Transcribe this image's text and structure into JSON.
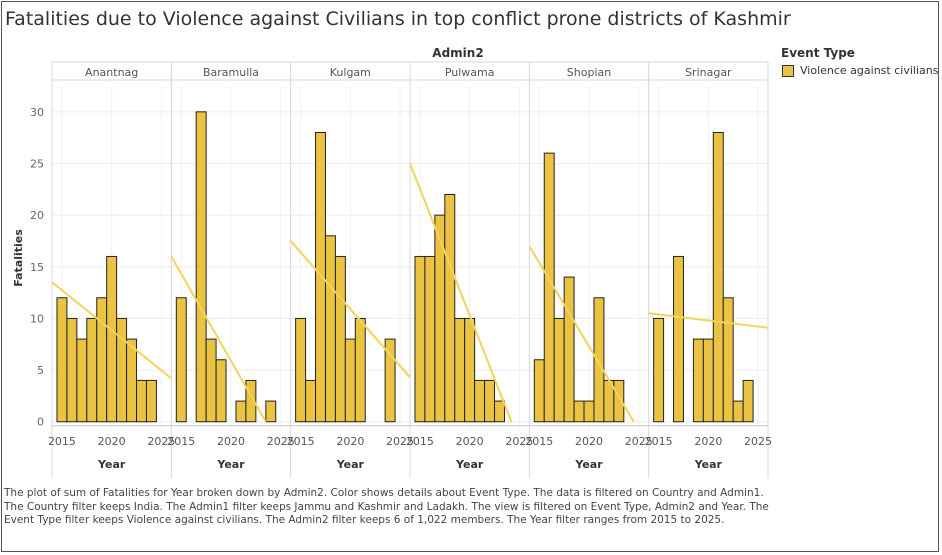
{
  "page": {
    "title": "Fatalities due to Violence against Civilians in top conflict prone districts of Kashmir",
    "caption": "The plot of sum of Fatalities for Year broken down by Admin2.  Color shows details about Event Type. The data is filtered on Country and Admin1. The Country filter keeps India. The Admin1 filter keeps Jammu and Kashmir and Ladakh. The view is filtered on Event Type, Admin2 and Year. The Event Type filter keeps Violence against civilians. The Admin2 filter keeps 6 of 1,022 members. The Year filter ranges from 2015 to 2025."
  },
  "legend": {
    "title": "Event Type",
    "items": [
      {
        "label": "Violence against civilians",
        "color": "#eac343"
      }
    ]
  },
  "chart_data": {
    "type": "bar",
    "facet_title": "Admin2",
    "xlabel": "Year",
    "ylabel": "Fatalities",
    "x_ticks": [
      2015,
      2020,
      2025
    ],
    "xlim": [
      2014,
      2026
    ],
    "y_ticks": [
      0,
      5,
      10,
      15,
      20,
      25,
      30
    ],
    "ylim": [
      -0.8,
      32.5
    ],
    "bar_color": "#eac343",
    "trend_color": "#f2d45c",
    "panels": [
      {
        "name": "Anantnag",
        "bars": [
          {
            "year": 2015,
            "value": 12
          },
          {
            "year": 2016,
            "value": 10
          },
          {
            "year": 2017,
            "value": 8
          },
          {
            "year": 2018,
            "value": 10
          },
          {
            "year": 2019,
            "value": 12
          },
          {
            "year": 2020,
            "value": 16
          },
          {
            "year": 2021,
            "value": 10
          },
          {
            "year": 2022,
            "value": 8
          },
          {
            "year": 2023,
            "value": 4
          },
          {
            "year": 2024,
            "value": 4
          }
        ],
        "trend": [
          [
            2014,
            13.5
          ],
          [
            2026,
            4.2
          ]
        ]
      },
      {
        "name": "Baramulla",
        "bars": [
          {
            "year": 2015,
            "value": 12
          },
          {
            "year": 2017,
            "value": 30
          },
          {
            "year": 2018,
            "value": 8
          },
          {
            "year": 2019,
            "value": 6
          },
          {
            "year": 2021,
            "value": 2
          },
          {
            "year": 2022,
            "value": 4
          },
          {
            "year": 2024,
            "value": 2
          }
        ],
        "trend": [
          [
            2014,
            16.0
          ],
          [
            2023.5,
            0
          ]
        ]
      },
      {
        "name": "Kulgam",
        "bars": [
          {
            "year": 2015,
            "value": 10
          },
          {
            "year": 2016,
            "value": 4
          },
          {
            "year": 2017,
            "value": 28
          },
          {
            "year": 2018,
            "value": 18
          },
          {
            "year": 2019,
            "value": 16
          },
          {
            "year": 2020,
            "value": 8
          },
          {
            "year": 2021,
            "value": 10
          },
          {
            "year": 2024,
            "value": 8
          }
        ],
        "trend": [
          [
            2014,
            17.5
          ],
          [
            2026,
            4.3
          ]
        ]
      },
      {
        "name": "Pulwama",
        "bars": [
          {
            "year": 2015,
            "value": 16
          },
          {
            "year": 2016,
            "value": 16
          },
          {
            "year": 2017,
            "value": 20
          },
          {
            "year": 2018,
            "value": 22
          },
          {
            "year": 2019,
            "value": 10
          },
          {
            "year": 2020,
            "value": 10
          },
          {
            "year": 2021,
            "value": 4
          },
          {
            "year": 2022,
            "value": 4
          },
          {
            "year": 2023,
            "value": 2
          }
        ],
        "trend": [
          [
            2014,
            25.0
          ],
          [
            2024.2,
            0
          ]
        ]
      },
      {
        "name": "Shopian",
        "bars": [
          {
            "year": 2015,
            "value": 6
          },
          {
            "year": 2016,
            "value": 26
          },
          {
            "year": 2017,
            "value": 10
          },
          {
            "year": 2018,
            "value": 14
          },
          {
            "year": 2019,
            "value": 2
          },
          {
            "year": 2020,
            "value": 2
          },
          {
            "year": 2021,
            "value": 12
          },
          {
            "year": 2022,
            "value": 4
          },
          {
            "year": 2023,
            "value": 4
          }
        ],
        "trend": [
          [
            2014,
            17.0
          ],
          [
            2024.5,
            0
          ]
        ]
      },
      {
        "name": "Srinagar",
        "bars": [
          {
            "year": 2015,
            "value": 10
          },
          {
            "year": 2017,
            "value": 16
          },
          {
            "year": 2019,
            "value": 8
          },
          {
            "year": 2020,
            "value": 8
          },
          {
            "year": 2021,
            "value": 28
          },
          {
            "year": 2022,
            "value": 12
          },
          {
            "year": 2023,
            "value": 2
          },
          {
            "year": 2024,
            "value": 4
          }
        ],
        "trend": [
          [
            2014,
            10.5
          ],
          [
            2026,
            9.1
          ]
        ]
      }
    ]
  }
}
